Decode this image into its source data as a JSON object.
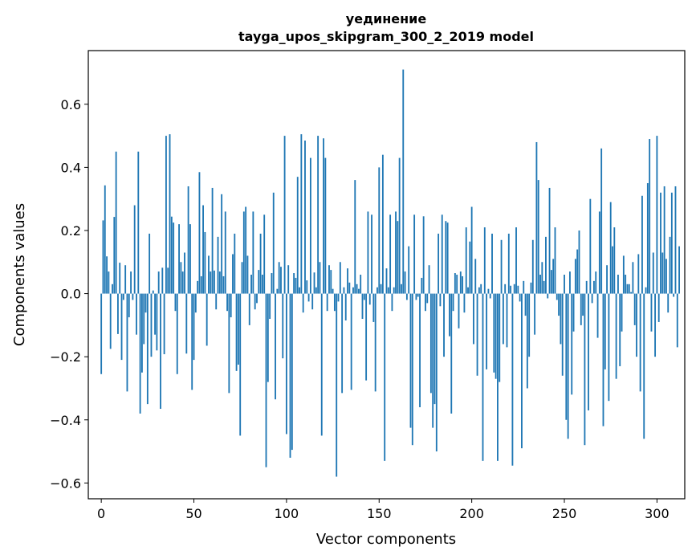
{
  "chart_data": {
    "type": "bar",
    "title": "уединение",
    "subtitle": "tayga_upos_skipgram_300_2_2019 model",
    "xlabel": "Vector components",
    "ylabel": "Components values",
    "xlim": [
      -7,
      315
    ],
    "ylim": [
      -0.65,
      0.77
    ],
    "xticks": [
      0,
      50,
      100,
      150,
      200,
      250,
      300
    ],
    "yticks": [
      -0.6,
      -0.4,
      -0.2,
      0.0,
      0.2,
      0.4,
      0.6
    ],
    "xtick_labels": [
      "0",
      "50",
      "100",
      "150",
      "200",
      "250",
      "300"
    ],
    "ytick_labels": [
      "−0.6",
      "−0.4",
      "−0.2",
      "0.0",
      "0.2",
      "0.4",
      "0.6"
    ],
    "bar_color": "#1f77b4",
    "grid": false,
    "values": [
      -0.255,
      0.232,
      0.343,
      0.118,
      0.07,
      -0.175,
      0.03,
      0.243,
      0.45,
      -0.128,
      0.098,
      -0.21,
      -0.02,
      0.09,
      -0.31,
      -0.075,
      0.07,
      -0.02,
      0.28,
      -0.13,
      0.45,
      -0.38,
      -0.25,
      -0.16,
      -0.06,
      -0.35,
      0.19,
      -0.2,
      0.01,
      -0.13,
      -0.18,
      0.07,
      -0.365,
      0.082,
      -0.192,
      0.5,
      0.082,
      0.505,
      0.244,
      0.225,
      -0.055,
      -0.255,
      0.22,
      0.1,
      0.07,
      0.13,
      -0.19,
      0.34,
      0.22,
      -0.305,
      -0.21,
      -0.06,
      0.04,
      0.385,
      0.055,
      0.28,
      0.195,
      -0.165,
      0.12,
      0.07,
      0.335,
      0.073,
      -0.05,
      0.18,
      0.07,
      0.315,
      0.055,
      0.26,
      -0.055,
      -0.315,
      -0.075,
      0.125,
      0.19,
      -0.245,
      -0.225,
      -0.45,
      0.1,
      0.26,
      0.275,
      0.12,
      -0.1,
      0.06,
      0.26,
      -0.05,
      -0.03,
      0.075,
      0.19,
      0.06,
      0.25,
      -0.55,
      -0.28,
      -0.08,
      0.065,
      0.32,
      -0.335,
      0.015,
      0.1,
      0.085,
      -0.205,
      0.5,
      -0.445,
      0.09,
      -0.52,
      -0.495,
      0.065,
      0.05,
      0.37,
      0.02,
      0.505,
      -0.06,
      0.485,
      0.042,
      -0.025,
      0.43,
      -0.05,
      0.067,
      0.02,
      0.5,
      0.1,
      -0.45,
      0.492,
      0.43,
      -0.055,
      0.09,
      0.075,
      0.015,
      -0.055,
      -0.58,
      -0.025,
      0.1,
      -0.315,
      0.02,
      -0.085,
      0.08,
      0.035,
      -0.305,
      0.02,
      0.36,
      0.03,
      0.015,
      0.06,
      -0.08,
      -0.02,
      -0.275,
      0.26,
      -0.035,
      0.25,
      -0.09,
      -0.31,
      0.02,
      0.4,
      0.03,
      0.44,
      -0.53,
      0.08,
      0.02,
      0.25,
      -0.055,
      0.02,
      0.26,
      0.23,
      0.43,
      0.03,
      0.71,
      0.07,
      -0.02,
      0.15,
      -0.425,
      -0.48,
      0.25,
      -0.02,
      -0.01,
      -0.36,
      0.05,
      0.245,
      -0.055,
      -0.03,
      0.09,
      -0.315,
      -0.425,
      -0.35,
      -0.5,
      0.19,
      -0.04,
      0.25,
      -0.2,
      0.23,
      0.225,
      -0.135,
      -0.38,
      -0.055,
      0.065,
      0.06,
      -0.11,
      0.07,
      0.055,
      -0.06,
      0.21,
      0.02,
      0.165,
      0.275,
      -0.16,
      0.11,
      -0.26,
      0.02,
      0.03,
      -0.53,
      0.21,
      -0.24,
      0.015,
      -0.015,
      0.19,
      -0.25,
      -0.27,
      -0.53,
      -0.28,
      0.17,
      -0.16,
      0.03,
      -0.17,
      0.19,
      0.025,
      -0.545,
      0.03,
      0.21,
      0.025,
      -0.025,
      -0.49,
      0.04,
      -0.07,
      -0.3,
      -0.2,
      0.035,
      0.17,
      -0.13,
      0.48,
      0.36,
      0.06,
      0.1,
      0.04,
      0.18,
      -0.015,
      0.335,
      0.075,
      0.11,
      0.21,
      -0.02,
      -0.07,
      -0.16,
      -0.26,
      0.06,
      -0.4,
      -0.46,
      0.07,
      -0.32,
      -0.12,
      0.11,
      0.14,
      0.2,
      -0.1,
      -0.07,
      -0.48,
      0.04,
      -0.37,
      0.3,
      -0.03,
      0.04,
      0.07,
      -0.14,
      0.26,
      0.46,
      -0.42,
      -0.24,
      0.09,
      -0.34,
      0.29,
      0.15,
      0.21,
      -0.27,
      0.06,
      -0.23,
      -0.12,
      0.12,
      0.06,
      0.03,
      0.03,
      0.005,
      0.1,
      -0.1,
      -0.2,
      0.125,
      -0.31,
      0.31,
      -0.46,
      0.02,
      0.35,
      0.49,
      -0.12,
      0.13,
      -0.2,
      0.5,
      -0.09,
      0.32,
      0.13,
      0.34,
      0.11,
      -0.06,
      0.18,
      0.32,
      -0.01,
      0.34,
      -0.17,
      0.15
    ]
  }
}
